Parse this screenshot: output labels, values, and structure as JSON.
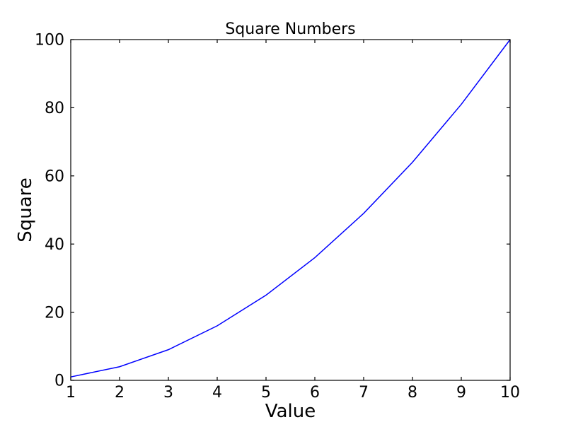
{
  "figure": {
    "background": "#ffffff",
    "axis_color": "#000000",
    "text_color": "#000000"
  },
  "chart_data": {
    "type": "line",
    "title": "Square Numbers",
    "xlabel": "Value",
    "ylabel": "Square",
    "x": [
      1,
      2,
      3,
      4,
      5,
      6,
      7,
      8,
      9,
      10
    ],
    "y": [
      1,
      4,
      9,
      16,
      25,
      36,
      49,
      64,
      81,
      100
    ],
    "xlim": [
      1,
      10
    ],
    "ylim": [
      0,
      100
    ],
    "xticks": [
      1,
      2,
      3,
      4,
      5,
      6,
      7,
      8,
      9,
      10
    ],
    "xtick_labels": [
      "1",
      "2",
      "3",
      "4",
      "5",
      "6",
      "7",
      "8",
      "9",
      "10"
    ],
    "yticks": [
      0,
      20,
      40,
      60,
      80,
      100
    ],
    "ytick_labels": [
      "0",
      "20",
      "40",
      "60",
      "80",
      "100"
    ],
    "line_color": "#0000ff",
    "grid": false,
    "legend": null
  }
}
